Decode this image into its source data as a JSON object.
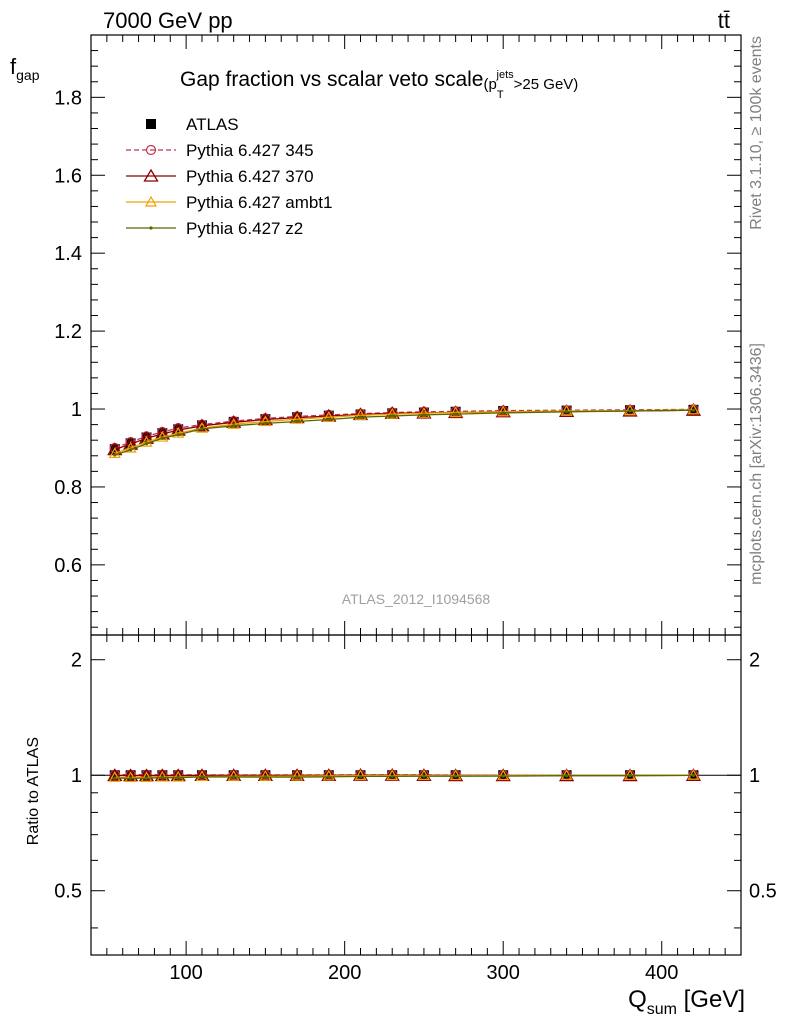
{
  "header": {
    "energy_label": "7000 GeV pp",
    "process_label": "tt̄"
  },
  "side_labels": {
    "rivet": "Rivet 3.1.10, ≥ 100k events",
    "mcplots": "mcplots.cern.ch [arXiv:1306.3436]"
  },
  "colors": {
    "atlas": "#000000",
    "p345": "#c0334d",
    "p370": "#8b0000",
    "ambt1": "#f0a000",
    "z2": "#556b00"
  },
  "chart_data": {
    "type": "line",
    "title": "Gap fraction vs scalar veto scale",
    "title_suffix": "(p_T^jets >25 GeV)",
    "title_suffix_parts": {
      "open": "(p",
      "sub": "T",
      "sup": "jets",
      "tail": ">25 GeV)"
    },
    "watermark": "ATLAS_2012_I1094568",
    "xlabel_main": "Q",
    "xlabel_sub": "sum",
    "xlabel_unit": "[GeV]",
    "ylabel_main": "f",
    "ylabel_sub": "gap",
    "ratio_ylabel": "Ratio to ATLAS",
    "xlim": [
      40,
      450
    ],
    "ylim": [
      0.42,
      1.96
    ],
    "ratio_ylim": [
      0.34,
      2.32
    ],
    "x_ticks": [
      100,
      200,
      300,
      400
    ],
    "x_tick_labels": [
      "100",
      "200",
      "300",
      "400"
    ],
    "y_ticks": [
      0.6,
      0.8,
      1.0,
      1.2,
      1.4,
      1.6,
      1.8
    ],
    "y_tick_labels": [
      "0.6",
      "0.8",
      "1",
      "1.2",
      "1.4",
      "1.6",
      "1.8"
    ],
    "ratio_ticks": [
      0.5,
      1,
      2
    ],
    "ratio_tick_labels_left": [
      "0.5",
      "1",
      "2"
    ],
    "ratio_tick_labels_right": [
      "0.5",
      "1",
      "2"
    ],
    "legend_position": "top-left",
    "x": [
      55,
      65,
      75,
      85,
      95,
      110,
      130,
      150,
      170,
      190,
      210,
      230,
      250,
      270,
      300,
      340,
      380,
      420
    ],
    "series": [
      {
        "name": "ATLAS",
        "marker": "square",
        "values": [
          0.897,
          0.912,
          0.927,
          0.938,
          0.948,
          0.958,
          0.967,
          0.974,
          0.979,
          0.983,
          0.986,
          0.989,
          0.991,
          0.993,
          0.995,
          0.996,
          0.997,
          0.998
        ]
      },
      {
        "name": "Pythia 6.427 345",
        "marker": "circle",
        "dashed": true,
        "values": [
          0.9,
          0.915,
          0.93,
          0.941,
          0.951,
          0.96,
          0.969,
          0.976,
          0.981,
          0.985,
          0.988,
          0.991,
          0.993,
          0.994,
          0.996,
          0.997,
          0.998,
          0.999
        ]
      },
      {
        "name": "Pythia 6.427 370",
        "marker": "triangle-large",
        "values": [
          0.896,
          0.91,
          0.925,
          0.936,
          0.946,
          0.957,
          0.966,
          0.973,
          0.978,
          0.982,
          0.986,
          0.989,
          0.99,
          0.991,
          0.993,
          0.994,
          0.995,
          0.997
        ]
      },
      {
        "name": "Pythia 6.427 ambt1",
        "marker": "triangle",
        "values": [
          0.886,
          0.9,
          0.915,
          0.928,
          0.938,
          0.951,
          0.961,
          0.968,
          0.974,
          0.979,
          0.984,
          0.987,
          0.989,
          0.991,
          0.993,
          0.995,
          0.996,
          0.998
        ]
      },
      {
        "name": "Pythia 6.427 z2",
        "marker": "dot",
        "values": [
          0.882,
          0.895,
          0.911,
          0.925,
          0.934,
          0.949,
          0.957,
          0.963,
          0.968,
          0.973,
          0.979,
          0.982,
          0.985,
          0.987,
          0.99,
          0.993,
          0.995,
          0.997
        ]
      }
    ]
  }
}
